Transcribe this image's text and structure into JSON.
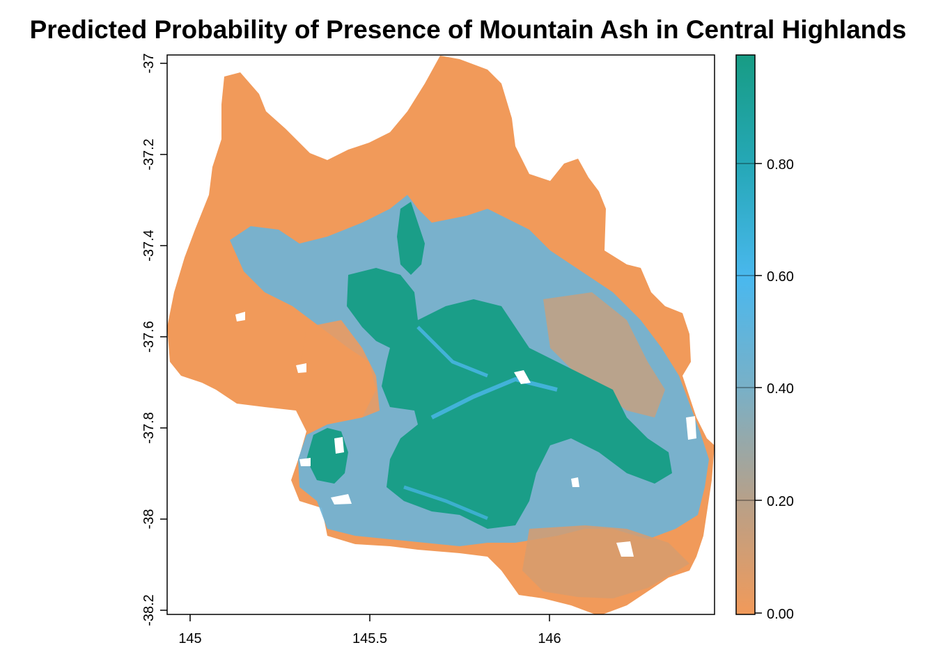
{
  "title": "Predicted Probability of Presence of Mountain Ash in Central Highlands",
  "map": {
    "x_ticks": [
      "145",
      "145.5",
      "146"
    ],
    "y_ticks": [
      "-37",
      "-37.2",
      "-37.4",
      "-37.6",
      "-37.8",
      "-38",
      "-38.2"
    ]
  },
  "legend": {
    "ticks": [
      "0.00",
      "0.20",
      "0.40",
      "0.60",
      "0.80"
    ],
    "colors": [
      "#f19a5a",
      "#b4a38a",
      "#78b4c8",
      "#4cb6ec",
      "#2aa6c0",
      "#1a9e88"
    ]
  }
}
